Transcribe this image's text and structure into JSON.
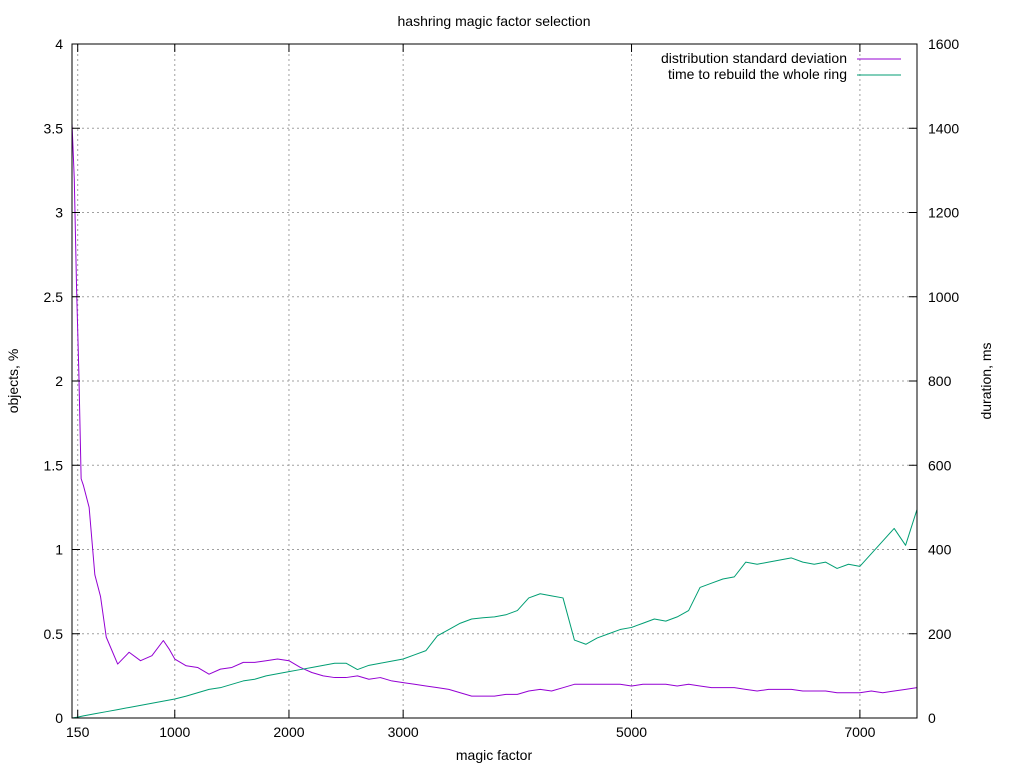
{
  "chart_data": {
    "type": "line",
    "title": "hashring magic factor selection",
    "xlabel": "magic factor",
    "ylabel_left": "objects, %",
    "ylabel_right": "duration, ms",
    "xlim": [
      100,
      7500
    ],
    "ylim_left": [
      0,
      4
    ],
    "ylim_right": [
      0,
      1600
    ],
    "x_ticks": [
      150,
      1000,
      2000,
      3000,
      5000,
      7000
    ],
    "y_left_ticks": [
      0,
      0.5,
      1,
      1.5,
      2,
      2.5,
      3,
      3.5,
      4
    ],
    "y_right_ticks": [
      0,
      200,
      400,
      600,
      800,
      1000,
      1200,
      1400,
      1600
    ],
    "grid": true,
    "legend_position": "top-right",
    "series": [
      {
        "name": "distribution standard deviation",
        "axis": "left",
        "color": "#9400d3",
        "x": [
          100,
          120,
          140,
          160,
          180,
          200,
          250,
          300,
          350,
          400,
          500,
          600,
          700,
          800,
          900,
          950,
          1000,
          1100,
          1200,
          1300,
          1400,
          1500,
          1600,
          1700,
          1800,
          1900,
          2000,
          2100,
          2200,
          2300,
          2400,
          2500,
          2600,
          2700,
          2800,
          2900,
          3000,
          3100,
          3200,
          3300,
          3400,
          3500,
          3600,
          3700,
          3800,
          3900,
          4000,
          4100,
          4200,
          4300,
          4400,
          4500,
          4600,
          4700,
          4800,
          4900,
          5000,
          5100,
          5200,
          5300,
          5400,
          5500,
          5600,
          5700,
          5800,
          5900,
          6000,
          6100,
          6200,
          6300,
          6400,
          6500,
          6600,
          6700,
          6800,
          6900,
          7000,
          7100,
          7200,
          7300,
          7400,
          7500
        ],
        "y": [
          3.53,
          3.2,
          2.55,
          2.05,
          1.42,
          1.38,
          1.25,
          0.85,
          0.72,
          0.48,
          0.32,
          0.39,
          0.34,
          0.37,
          0.46,
          0.41,
          0.35,
          0.31,
          0.3,
          0.26,
          0.29,
          0.3,
          0.33,
          0.33,
          0.34,
          0.35,
          0.34,
          0.3,
          0.27,
          0.25,
          0.24,
          0.24,
          0.25,
          0.23,
          0.24,
          0.22,
          0.21,
          0.2,
          0.19,
          0.18,
          0.17,
          0.15,
          0.13,
          0.13,
          0.13,
          0.14,
          0.14,
          0.16,
          0.17,
          0.16,
          0.18,
          0.2,
          0.2,
          0.2,
          0.2,
          0.2,
          0.19,
          0.2,
          0.2,
          0.2,
          0.19,
          0.2,
          0.19,
          0.18,
          0.18,
          0.18,
          0.17,
          0.16,
          0.17,
          0.17,
          0.17,
          0.16,
          0.16,
          0.16,
          0.15,
          0.15,
          0.15,
          0.16,
          0.15,
          0.16,
          0.17,
          0.18
        ]
      },
      {
        "name": "time to rebuild the whole ring",
        "axis": "right",
        "color": "#009e73",
        "x": [
          100,
          150,
          200,
          300,
          400,
          500,
          600,
          700,
          800,
          900,
          1000,
          1100,
          1200,
          1300,
          1400,
          1500,
          1600,
          1700,
          1800,
          1900,
          2000,
          2100,
          2200,
          2300,
          2400,
          2500,
          2600,
          2700,
          2800,
          2900,
          3000,
          3100,
          3200,
          3300,
          3400,
          3500,
          3600,
          3700,
          3800,
          3900,
          4000,
          4100,
          4200,
          4300,
          4400,
          4500,
          4600,
          4700,
          4800,
          4900,
          5000,
          5100,
          5200,
          5300,
          5400,
          5500,
          5600,
          5700,
          5800,
          5900,
          6000,
          6100,
          6200,
          6300,
          6400,
          6500,
          6600,
          6700,
          6800,
          6900,
          7000,
          7100,
          7200,
          7300,
          7400,
          7500
        ],
        "y": [
          0,
          2,
          5,
          10,
          15,
          20,
          25,
          30,
          35,
          40,
          45,
          52,
          60,
          68,
          72,
          80,
          88,
          92,
          100,
          105,
          110,
          115,
          120,
          125,
          130,
          130,
          115,
          125,
          130,
          135,
          140,
          150,
          160,
          195,
          210,
          225,
          235,
          238,
          240,
          245,
          255,
          285,
          295,
          290,
          285,
          185,
          175,
          190,
          200,
          210,
          215,
          225,
          235,
          230,
          240,
          255,
          310,
          320,
          330,
          335,
          370,
          365,
          370,
          375,
          380,
          370,
          365,
          370,
          355,
          365,
          360,
          390,
          420,
          450,
          410,
          495
        ]
      }
    ]
  }
}
